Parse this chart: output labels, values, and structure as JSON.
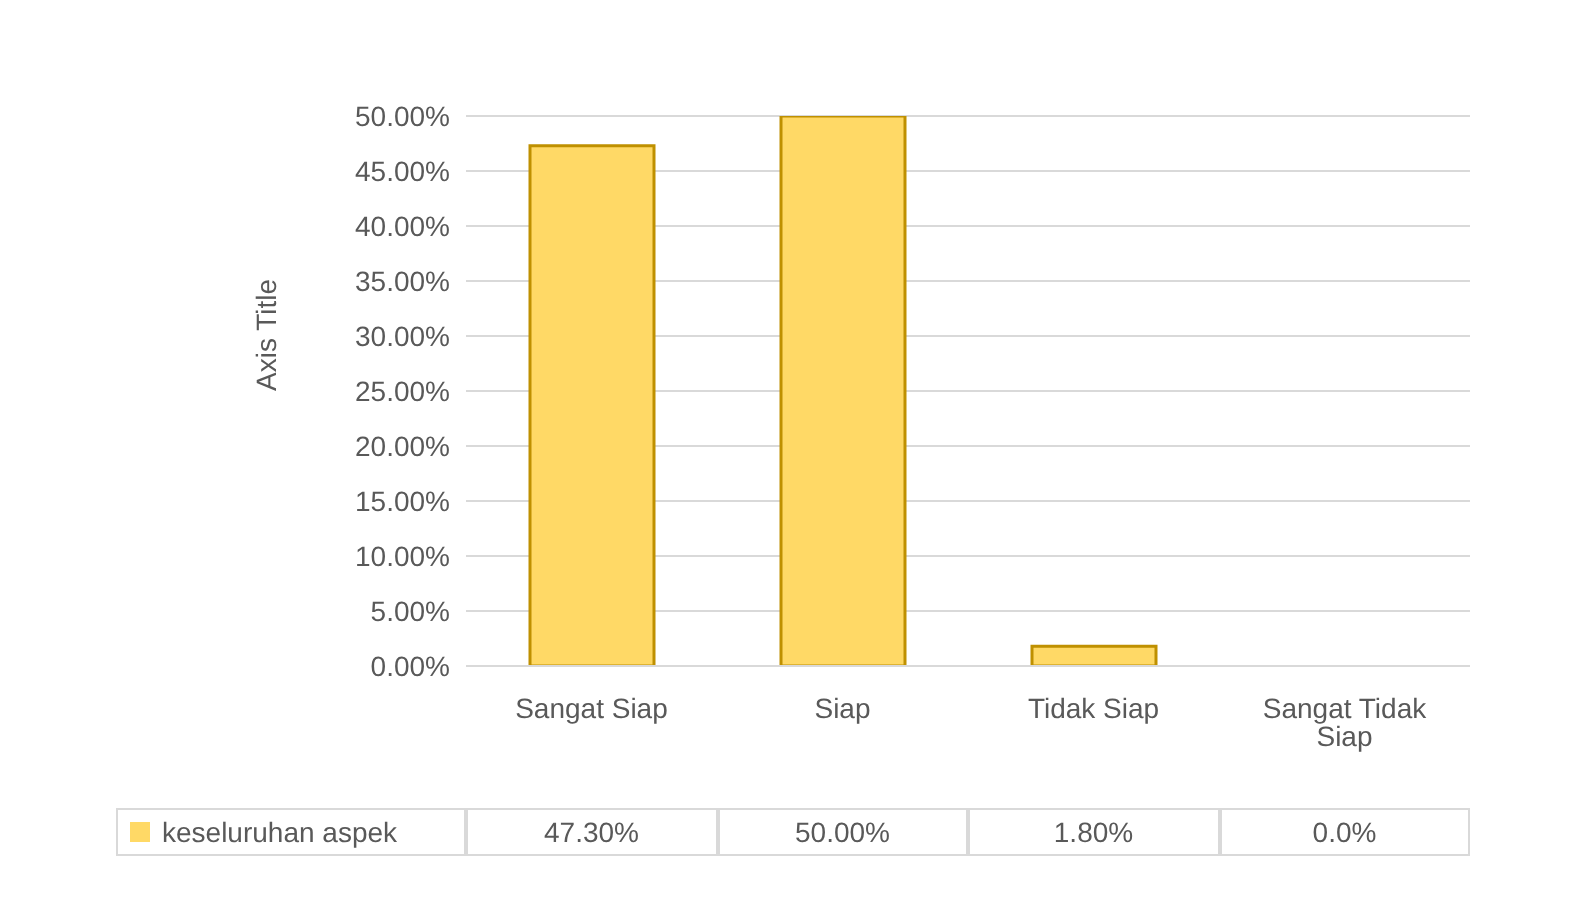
{
  "chart_data": {
    "type": "bar",
    "ylabel": "Axis Title",
    "categories": [
      "Sangat Siap",
      "Siap",
      "Tidak Siap",
      "Sangat Tidak Siap"
    ],
    "series": [
      {
        "name": "keseluruhan aspek",
        "color": "#ffd966",
        "values": [
          47.3,
          50.0,
          1.8,
          0.0
        ],
        "value_labels": [
          "47.30%",
          "50.00%",
          "1.80%",
          "0.0%"
        ]
      }
    ],
    "ylim": [
      0,
      50
    ],
    "yticks": [
      {
        "value": 0,
        "label": "0.00%"
      },
      {
        "value": 5,
        "label": "5.00%"
      },
      {
        "value": 10,
        "label": "10.00%"
      },
      {
        "value": 15,
        "label": "15.00%"
      },
      {
        "value": 20,
        "label": "20.00%"
      },
      {
        "value": 25,
        "label": "25.00%"
      },
      {
        "value": 30,
        "label": "30.00%"
      },
      {
        "value": 35,
        "label": "35.00%"
      },
      {
        "value": 40,
        "label": "40.00%"
      },
      {
        "value": 45,
        "label": "45.00%"
      },
      {
        "value": 50,
        "label": "50.00%"
      }
    ],
    "grid": "y"
  }
}
